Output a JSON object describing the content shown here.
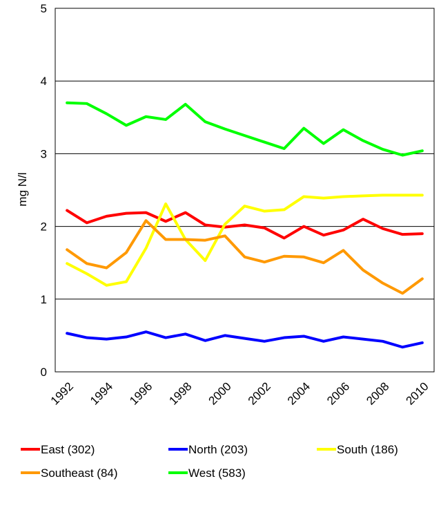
{
  "chart_data": {
    "type": "line",
    "ylabel": "mg N/l",
    "xlabel": "",
    "ylim": [
      0,
      5
    ],
    "yticks": [
      "0",
      "1",
      "2",
      "3",
      "4",
      "5"
    ],
    "x": [
      1992,
      1993,
      1994,
      1995,
      1996,
      1997,
      1998,
      1999,
      2000,
      2001,
      2002,
      2003,
      2004,
      2005,
      2006,
      2007,
      2008,
      2009,
      2010
    ],
    "xtick_labels": [
      "1992",
      "1994",
      "1996",
      "1998",
      "2000",
      "2002",
      "2004",
      "2006",
      "2008",
      "2010"
    ],
    "grid": "horizontal",
    "legend_position": "bottom",
    "series": [
      {
        "name": "East (302)",
        "color": "#ff0000",
        "values": [
          2.22,
          2.05,
          2.14,
          2.18,
          2.19,
          2.07,
          2.19,
          2.02,
          1.99,
          2.02,
          1.98,
          1.84,
          2.0,
          1.88,
          1.95,
          2.1,
          1.97,
          1.89,
          1.9
        ]
      },
      {
        "name": "North (203)",
        "color": "#0000ff",
        "values": [
          0.53,
          0.47,
          0.45,
          0.48,
          0.55,
          0.47,
          0.52,
          0.43,
          0.5,
          0.46,
          0.42,
          0.47,
          0.49,
          0.42,
          0.48,
          0.45,
          0.42,
          0.34,
          0.4
        ]
      },
      {
        "name": "South (186)",
        "color": "#ffff00",
        "values": [
          1.49,
          1.35,
          1.19,
          1.24,
          1.7,
          2.31,
          1.82,
          1.53,
          2.03,
          2.28,
          2.21,
          2.23,
          2.41,
          2.39,
          2.41,
          2.42,
          2.43,
          2.43,
          2.43
        ]
      },
      {
        "name": "Southeast (84)",
        "color": "#ff9900",
        "values": [
          1.68,
          1.49,
          1.43,
          1.64,
          2.08,
          1.82,
          1.82,
          1.81,
          1.87,
          1.58,
          1.51,
          1.59,
          1.58,
          1.5,
          1.67,
          1.4,
          1.22,
          1.08,
          1.28
        ]
      },
      {
        "name": "West (583)",
        "color": "#00ff00",
        "values": [
          3.7,
          3.69,
          3.55,
          3.39,
          3.51,
          3.47,
          3.68,
          3.44,
          3.34,
          3.25,
          3.16,
          3.07,
          3.35,
          3.14,
          3.33,
          3.18,
          3.06,
          2.98,
          3.04
        ]
      }
    ]
  }
}
